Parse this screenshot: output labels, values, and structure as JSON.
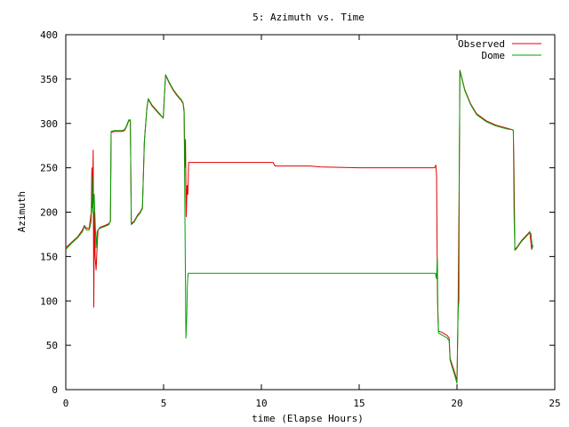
{
  "chart_data": {
    "type": "line",
    "title": "5: Azimuth vs. Time",
    "xlabel": "time (Elapse Hours)",
    "ylabel": "Azimuth",
    "xlim": [
      0,
      25
    ],
    "ylim": [
      0,
      400
    ],
    "xticks": [
      0,
      5,
      10,
      15,
      20,
      25
    ],
    "yticks": [
      0,
      50,
      100,
      150,
      200,
      250,
      300,
      350,
      400
    ],
    "grid": false,
    "legend_position": "top-right",
    "series": [
      {
        "name": "Observed",
        "color": "#e00000",
        "points": [
          [
            0.0,
            160
          ],
          [
            0.3,
            166
          ],
          [
            0.6,
            172
          ],
          [
            0.85,
            180
          ],
          [
            0.95,
            185
          ],
          [
            1.05,
            182
          ],
          [
            1.2,
            182
          ],
          [
            1.3,
            200
          ],
          [
            1.33,
            250
          ],
          [
            1.36,
            205
          ],
          [
            1.4,
            270
          ],
          [
            1.43,
            93
          ],
          [
            1.46,
            200
          ],
          [
            1.5,
            150
          ],
          [
            1.55,
            135
          ],
          [
            1.6,
            160
          ],
          [
            1.65,
            180
          ],
          [
            1.75,
            183
          ],
          [
            2.0,
            185
          ],
          [
            2.2,
            187
          ],
          [
            2.28,
            190
          ],
          [
            2.32,
            290
          ],
          [
            2.5,
            291
          ],
          [
            2.9,
            291
          ],
          [
            3.0,
            292
          ],
          [
            3.1,
            296
          ],
          [
            3.22,
            303
          ],
          [
            3.3,
            303
          ],
          [
            3.35,
            187
          ],
          [
            3.5,
            190
          ],
          [
            3.65,
            196
          ],
          [
            3.8,
            200
          ],
          [
            3.92,
            205
          ],
          [
            4.02,
            280
          ],
          [
            4.15,
            318
          ],
          [
            4.22,
            327
          ],
          [
            4.4,
            320
          ],
          [
            4.6,
            315
          ],
          [
            4.8,
            310
          ],
          [
            4.98,
            306
          ],
          [
            5.1,
            354
          ],
          [
            5.3,
            345
          ],
          [
            5.5,
            337
          ],
          [
            5.7,
            331
          ],
          [
            5.9,
            326
          ],
          [
            6.0,
            322
          ],
          [
            6.05,
            312
          ],
          [
            6.08,
            250
          ],
          [
            6.12,
            282
          ],
          [
            6.16,
            195
          ],
          [
            6.2,
            230
          ],
          [
            6.24,
            220
          ],
          [
            6.28,
            256
          ],
          [
            8.0,
            256
          ],
          [
            10.0,
            256
          ],
          [
            10.6,
            256
          ],
          [
            10.7,
            252
          ],
          [
            12.5,
            252
          ],
          [
            13.0,
            251
          ],
          [
            15.0,
            250
          ],
          [
            17.0,
            250
          ],
          [
            18.85,
            250
          ],
          [
            18.92,
            253
          ],
          [
            18.96,
            240
          ],
          [
            19.0,
            110
          ],
          [
            19.05,
            66
          ],
          [
            19.2,
            65
          ],
          [
            19.5,
            61
          ],
          [
            19.6,
            58
          ],
          [
            19.65,
            35
          ],
          [
            19.8,
            25
          ],
          [
            19.9,
            18
          ],
          [
            20.0,
            10
          ],
          [
            20.06,
            95
          ],
          [
            20.12,
            245
          ],
          [
            20.15,
            360
          ],
          [
            20.4,
            338
          ],
          [
            20.7,
            322
          ],
          [
            21.0,
            311
          ],
          [
            21.5,
            303
          ],
          [
            22.0,
            298
          ],
          [
            22.5,
            295
          ],
          [
            22.82,
            293
          ],
          [
            22.88,
            292
          ],
          [
            22.92,
            245
          ],
          [
            22.96,
            158
          ],
          [
            23.05,
            160
          ],
          [
            23.3,
            168
          ],
          [
            23.6,
            175
          ],
          [
            23.72,
            178
          ],
          [
            23.76,
            170
          ],
          [
            23.82,
            158
          ],
          [
            23.88,
            163
          ]
        ]
      },
      {
        "name": "Dome",
        "color": "#00a000",
        "points": [
          [
            0.0,
            158
          ],
          [
            0.3,
            165
          ],
          [
            0.6,
            171
          ],
          [
            0.85,
            178
          ],
          [
            0.95,
            184
          ],
          [
            1.05,
            180
          ],
          [
            1.2,
            180
          ],
          [
            1.3,
            190
          ],
          [
            1.35,
            240
          ],
          [
            1.38,
            200
          ],
          [
            1.42,
            210
          ],
          [
            1.45,
            220
          ],
          [
            1.5,
            190
          ],
          [
            1.55,
            160
          ],
          [
            1.6,
            178
          ],
          [
            1.65,
            180
          ],
          [
            1.75,
            182
          ],
          [
            2.0,
            184
          ],
          [
            2.2,
            186
          ],
          [
            2.28,
            190
          ],
          [
            2.32,
            291
          ],
          [
            2.5,
            292
          ],
          [
            2.9,
            292
          ],
          [
            3.0,
            293
          ],
          [
            3.1,
            297
          ],
          [
            3.22,
            304
          ],
          [
            3.3,
            304
          ],
          [
            3.35,
            186
          ],
          [
            3.5,
            189
          ],
          [
            3.65,
            195
          ],
          [
            3.8,
            199
          ],
          [
            3.92,
            204
          ],
          [
            4.02,
            280
          ],
          [
            4.15,
            318
          ],
          [
            4.22,
            328
          ],
          [
            4.4,
            321
          ],
          [
            4.6,
            316
          ],
          [
            4.8,
            311
          ],
          [
            4.98,
            306
          ],
          [
            5.1,
            355
          ],
          [
            5.3,
            346
          ],
          [
            5.5,
            338
          ],
          [
            5.7,
            332
          ],
          [
            5.9,
            327
          ],
          [
            6.0,
            323
          ],
          [
            6.05,
            315
          ],
          [
            6.1,
            170
          ],
          [
            6.14,
            58
          ],
          [
            6.18,
            80
          ],
          [
            6.22,
            120
          ],
          [
            6.26,
            131
          ],
          [
            8.0,
            131
          ],
          [
            10.0,
            131
          ],
          [
            12.0,
            131
          ],
          [
            15.0,
            131
          ],
          [
            17.0,
            131
          ],
          [
            18.9,
            131
          ],
          [
            18.95,
            125
          ],
          [
            19.0,
            148
          ],
          [
            19.02,
            90
          ],
          [
            19.06,
            64
          ],
          [
            19.2,
            62
          ],
          [
            19.5,
            58
          ],
          [
            19.6,
            55
          ],
          [
            19.65,
            33
          ],
          [
            19.8,
            22
          ],
          [
            19.9,
            15
          ],
          [
            20.0,
            7
          ],
          [
            20.06,
            90
          ],
          [
            20.1,
            100
          ],
          [
            20.12,
            250
          ],
          [
            20.15,
            359
          ],
          [
            20.4,
            337
          ],
          [
            20.7,
            321
          ],
          [
            21.0,
            310
          ],
          [
            21.5,
            302
          ],
          [
            22.0,
            297
          ],
          [
            22.5,
            294
          ],
          [
            22.82,
            293
          ],
          [
            22.88,
            292
          ],
          [
            22.92,
            200
          ],
          [
            22.96,
            157
          ],
          [
            23.05,
            159
          ],
          [
            23.3,
            167
          ],
          [
            23.6,
            174
          ],
          [
            23.72,
            177
          ],
          [
            23.78,
            176
          ],
          [
            23.84,
            162
          ],
          [
            23.88,
            160
          ]
        ]
      }
    ]
  }
}
